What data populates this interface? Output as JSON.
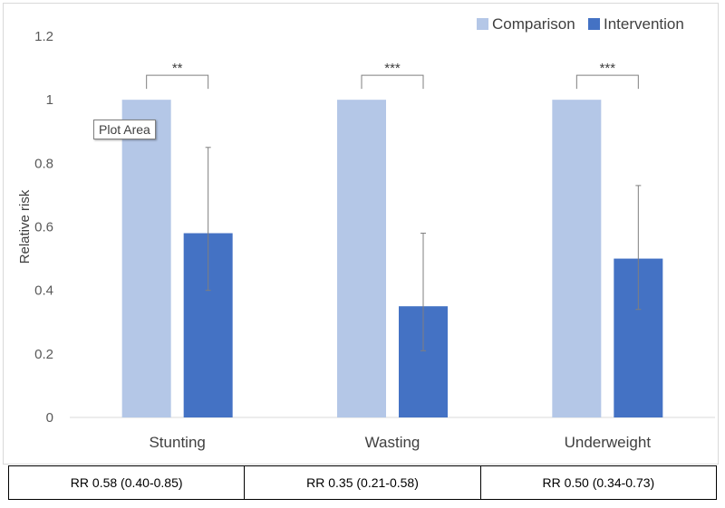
{
  "chart_data": {
    "type": "bar",
    "ylabel": "Relative risk",
    "ylim": [
      0,
      1.2
    ],
    "yticks": [
      "0",
      "0.2",
      "0.4",
      "0.6",
      "0.8",
      "1",
      "1.2"
    ],
    "categories": [
      "Stunting",
      "Wasting",
      "Underweight"
    ],
    "series": [
      {
        "name": "Comparison",
        "color": "#b4c7e7",
        "values": [
          1,
          1,
          1
        ]
      },
      {
        "name": "Intervention",
        "color": "#4472c4",
        "values": [
          0.58,
          0.35,
          0.5
        ],
        "error_low": [
          0.4,
          0.21,
          0.34
        ],
        "error_high": [
          0.85,
          0.58,
          0.73
        ]
      }
    ],
    "significance": [
      "**",
      "***",
      "***"
    ],
    "legend": "top-right",
    "grid": false
  },
  "tooltip": "Plot Area",
  "rr_table": [
    "RR 0.58 (0.40-0.85)",
    "RR 0.35 (0.21-0.58)",
    "RR 0.50 (0.34-0.73)"
  ]
}
